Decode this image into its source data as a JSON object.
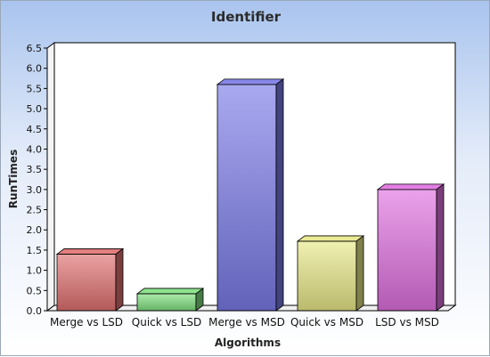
{
  "chart_data": {
    "type": "bar",
    "title": "Identifier",
    "xlabel": "Algorithms",
    "ylabel": "RunTimes",
    "categories": [
      "Merge vs LSD",
      "Quick vs LSD",
      "Merge vs MSD",
      "Quick vs MSD",
      "LSD vs MSD"
    ],
    "values": [
      1.4,
      0.42,
      5.6,
      1.72,
      3.0
    ],
    "ylim": [
      0,
      6.5
    ],
    "yticks": [
      "0.0",
      "0.5",
      "1.0",
      "1.5",
      "2.0",
      "2.5",
      "3.0",
      "3.5",
      "4.0",
      "4.5",
      "5.0",
      "5.5",
      "6.0",
      "6.5"
    ],
    "grid": false,
    "legend": "none",
    "style": "3d-bar",
    "bar_colors": [
      "#e07070",
      "#80e080",
      "#7a7ae8",
      "#e8e888",
      "#e070e0"
    ]
  }
}
